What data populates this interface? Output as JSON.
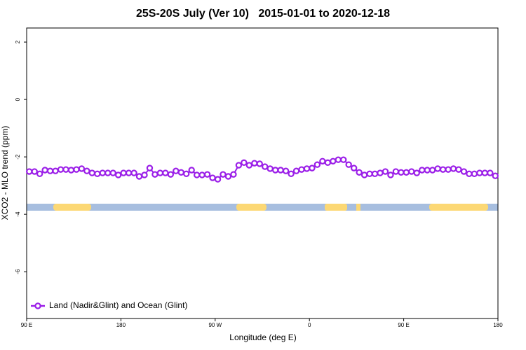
{
  "chart_data": {
    "type": "line",
    "title": "25S-20S July (Ver 10)   2015-01-01 to 2020-12-18",
    "xlabel": "Longitude (deg E)",
    "ylabel": "XCO2 - MLO trend (ppm)",
    "xlim": [
      90,
      540
    ],
    "ylim": [
      -7.63,
      2.49
    ],
    "xticks": [
      {
        "value": 90,
        "label": "90 E"
      },
      180,
      {
        "value": 270,
        "label": "90 W"
      },
      {
        "value": 360,
        "label": "0"
      },
      {
        "value": 450,
        "label": "90 E"
      },
      {
        "value": 540,
        "label": "180"
      }
    ],
    "yticks": [
      2,
      0,
      -2,
      -4,
      -6
    ],
    "legend": "bottom-left",
    "x": [
      92.5,
      97.5,
      102.5,
      107.5,
      112.5,
      117.5,
      122.5,
      127.5,
      132.5,
      137.5,
      142.5,
      147.5,
      152.5,
      157.5,
      162.5,
      167.5,
      172.5,
      177.5,
      182.5,
      187.5,
      192.5,
      197.5,
      202.5,
      207.5,
      212.5,
      217.5,
      222.5,
      227.5,
      232.5,
      237.5,
      242.5,
      247.5,
      252.5,
      257.5,
      262.5,
      267.5,
      272.5,
      277.5,
      282.5,
      287.5,
      292.5,
      297.5,
      302.5,
      307.5,
      312.5,
      317.5,
      322.5,
      327.5,
      332.5,
      337.5,
      342.5,
      347.5,
      352.5,
      357.5,
      362.5,
      367.5,
      372.5,
      377.5,
      382.5,
      387.5,
      392.5,
      397.5,
      402.5,
      407.5,
      412.5,
      417.5,
      422.5,
      427.5,
      432.5,
      437.5,
      442.5,
      447.5,
      452.5,
      457.5,
      462.5,
      467.5,
      472.5,
      477.5,
      482.5,
      487.5,
      492.5,
      497.5,
      502.5,
      507.5,
      512.5,
      517.5,
      522.5,
      527.5,
      532.5,
      537.5
    ],
    "series": [
      {
        "name": "Land (Nadir&Glint) and Ocean (Glint)",
        "color": "#9b1fe8",
        "values": [
          -2.51,
          -2.51,
          -2.59,
          -2.46,
          -2.49,
          -2.49,
          -2.44,
          -2.44,
          -2.46,
          -2.44,
          -2.41,
          -2.49,
          -2.56,
          -2.59,
          -2.56,
          -2.56,
          -2.56,
          -2.63,
          -2.56,
          -2.56,
          -2.56,
          -2.68,
          -2.63,
          -2.39,
          -2.61,
          -2.56,
          -2.56,
          -2.61,
          -2.49,
          -2.54,
          -2.59,
          -2.46,
          -2.63,
          -2.63,
          -2.61,
          -2.73,
          -2.78,
          -2.61,
          -2.68,
          -2.61,
          -2.29,
          -2.2,
          -2.29,
          -2.22,
          -2.24,
          -2.34,
          -2.41,
          -2.46,
          -2.46,
          -2.49,
          -2.59,
          -2.49,
          -2.44,
          -2.41,
          -2.39,
          -2.27,
          -2.15,
          -2.2,
          -2.15,
          -2.1,
          -2.1,
          -2.27,
          -2.39,
          -2.54,
          -2.63,
          -2.59,
          -2.59,
          -2.56,
          -2.51,
          -2.63,
          -2.51,
          -2.54,
          -2.54,
          -2.51,
          -2.56,
          -2.46,
          -2.46,
          -2.46,
          -2.41,
          -2.44,
          -2.44,
          -2.41,
          -2.44,
          -2.51,
          -2.59,
          -2.59,
          -2.56,
          -2.56,
          -2.56,
          -2.66
        ]
      }
    ]
  }
}
